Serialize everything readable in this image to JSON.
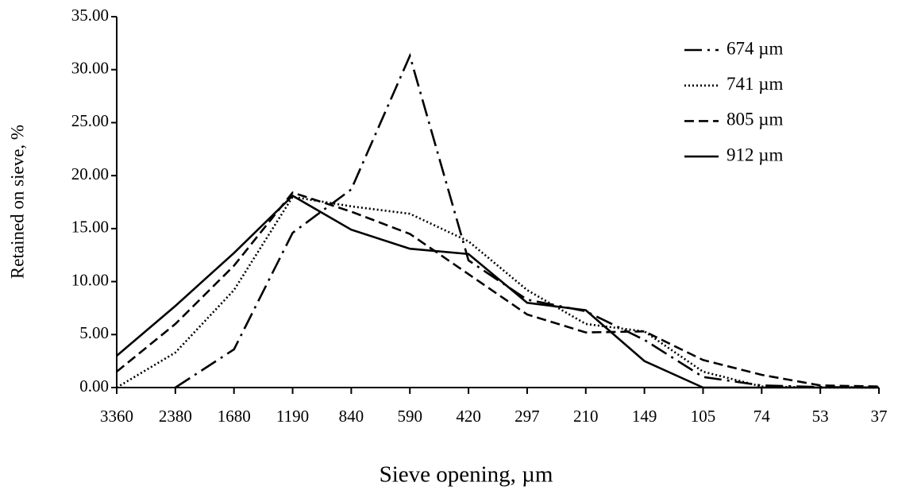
{
  "chart_data": {
    "type": "line",
    "xlabel": "Sieve opening, µm",
    "ylabel": "Retained on sieve, %",
    "categories": [
      "3360",
      "2380",
      "1680",
      "1190",
      "840",
      "590",
      "420",
      "297",
      "210",
      "149",
      "105",
      "74",
      "53",
      "37"
    ],
    "ylim": [
      0,
      35
    ],
    "yticks": [
      {
        "value": 0,
        "label": "0.00"
      },
      {
        "value": 5,
        "label": "5.00"
      },
      {
        "value": 10,
        "label": "10.00"
      },
      {
        "value": 15,
        "label": "15.00"
      },
      {
        "value": 20,
        "label": "20.00"
      },
      {
        "value": 25,
        "label": "25.00"
      },
      {
        "value": 30,
        "label": "30.00"
      },
      {
        "value": 35,
        "label": "35.00"
      }
    ],
    "legend": "upper right",
    "series": [
      {
        "name": "674 µm",
        "color": "#000000",
        "dash": "dash-dot",
        "values": [
          null,
          0,
          3.6,
          14.6,
          18.7,
          31.3,
          12.0,
          8.3,
          7.2,
          4.5,
          1.0,
          0.2,
          0.05,
          0
        ]
      },
      {
        "name": "741 µm",
        "color": "#000000",
        "dash": "dotted",
        "values": [
          0,
          3.3,
          9.2,
          18.0,
          17.1,
          16.4,
          13.8,
          9.2,
          6.0,
          5.3,
          1.5,
          0.1,
          0,
          0
        ]
      },
      {
        "name": "805 µm",
        "color": "#000000",
        "dash": "dashed",
        "values": [
          1.5,
          6.0,
          11.5,
          18.4,
          16.6,
          14.5,
          10.7,
          6.9,
          5.2,
          5.3,
          2.6,
          1.2,
          0.2,
          0.1
        ]
      },
      {
        "name": "912 µm",
        "color": "#000000",
        "dash": "solid",
        "values": [
          3.0,
          7.7,
          12.7,
          18.1,
          14.9,
          13.1,
          12.6,
          8.0,
          7.3,
          2.5,
          0,
          0,
          0,
          0
        ]
      }
    ]
  }
}
